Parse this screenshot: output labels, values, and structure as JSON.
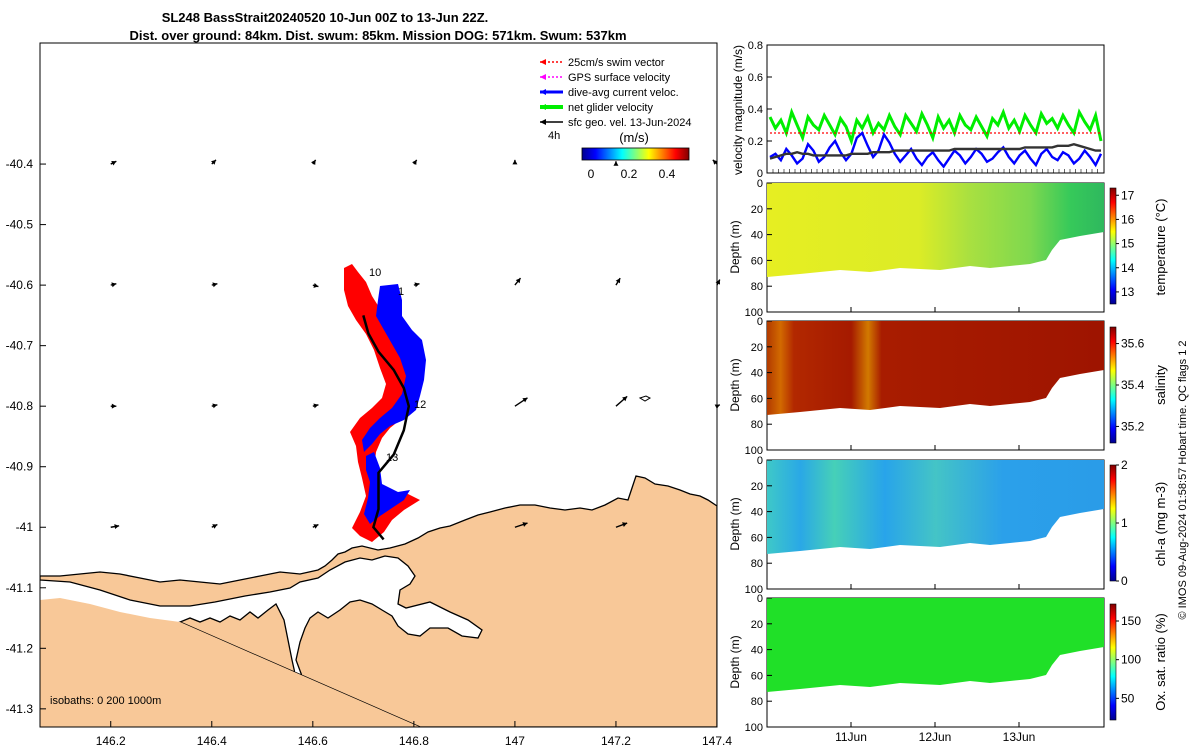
{
  "title": {
    "line1": "SL248 BassStrait20240520 10-Jun 00Z to 13-Jun 22Z.",
    "line2": "Dist. over ground: 84km. Dist. swum: 85km. Mission DOG: 571km. Swum: 537km"
  },
  "map": {
    "x_ticks": [
      "146.2",
      "146.4",
      "146.6",
      "146.8",
      "147",
      "147.2",
      "147.4"
    ],
    "y_ticks": [
      "-40.4",
      "-40.5",
      "-40.6",
      "-40.7",
      "-40.8",
      "-40.9",
      "-41",
      "-41.1",
      "-41.2",
      "-41.3"
    ],
    "xlim": [
      146.06,
      147.4
    ],
    "ylim": [
      -41.33,
      -40.2
    ],
    "isobaths": "isobaths: 0   200  1000m",
    "day_labels": [
      "10",
      "1",
      "12",
      "13"
    ],
    "legend": [
      {
        "label": "25cm/s swim vector",
        "color": "#ff0000"
      },
      {
        "label": "GPS surface velocity",
        "color": "#ff00ff"
      },
      {
        "label": "dive-avg current veloc.",
        "color": "#0000ff"
      },
      {
        "label": "net glider velocity",
        "color": "#00ee00"
      },
      {
        "label": "sfc geo. vel. 13-Jun-2024",
        "color": "#000000"
      }
    ],
    "arrow_scale_label": "4h",
    "colorbar_unit": "(m/s)",
    "colorbar_ticks": [
      "0",
      "0.2",
      "0.4"
    ],
    "land_color": "#f8c898",
    "geo_vectors": [
      {
        "lon": 146.2,
        "lat": -40.4,
        "u": 0.04,
        "v": 0.02
      },
      {
        "lon": 146.4,
        "lat": -40.4,
        "u": 0.03,
        "v": 0.03
      },
      {
        "lon": 146.6,
        "lat": -40.4,
        "u": 0.02,
        "v": 0.03
      },
      {
        "lon": 146.8,
        "lat": -40.4,
        "u": 0.02,
        "v": 0.03
      },
      {
        "lon": 147.0,
        "lat": -40.4,
        "u": 0.0,
        "v": 0.03
      },
      {
        "lon": 147.2,
        "lat": -40.4,
        "u": 0.0,
        "v": 0.02
      },
      {
        "lon": 147.4,
        "lat": -40.4,
        "u": -0.03,
        "v": 0.03
      },
      {
        "lon": 146.2,
        "lat": -40.6,
        "u": 0.04,
        "v": 0.01
      },
      {
        "lon": 146.4,
        "lat": -40.6,
        "u": 0.04,
        "v": 0.01
      },
      {
        "lon": 146.6,
        "lat": -40.6,
        "u": 0.04,
        "v": -0.01
      },
      {
        "lon": 146.8,
        "lat": -40.6,
        "u": 0.04,
        "v": 0.01
      },
      {
        "lon": 147.0,
        "lat": -40.6,
        "u": 0.04,
        "v": 0.05
      },
      {
        "lon": 147.2,
        "lat": -40.6,
        "u": 0.03,
        "v": 0.05
      },
      {
        "lon": 147.4,
        "lat": -40.6,
        "u": 0.02,
        "v": 0.04
      },
      {
        "lon": 146.2,
        "lat": -40.8,
        "u": 0.04,
        "v": 0.0
      },
      {
        "lon": 146.4,
        "lat": -40.8,
        "u": 0.04,
        "v": 0.01
      },
      {
        "lon": 146.6,
        "lat": -40.8,
        "u": 0.04,
        "v": 0.01
      },
      {
        "lon": 147.0,
        "lat": -40.8,
        "u": 0.09,
        "v": 0.06
      },
      {
        "lon": 147.2,
        "lat": -40.8,
        "u": 0.08,
        "v": 0.07
      },
      {
        "lon": 147.4,
        "lat": -40.8,
        "u": 0.02,
        "v": 0.01
      },
      {
        "lon": 146.2,
        "lat": -41.0,
        "u": 0.06,
        "v": 0.01
      },
      {
        "lon": 146.4,
        "lat": -41.0,
        "u": 0.04,
        "v": 0.02
      },
      {
        "lon": 146.6,
        "lat": -41.0,
        "u": 0.04,
        "v": 0.02
      },
      {
        "lon": 147.0,
        "lat": -41.0,
        "u": 0.09,
        "v": 0.03
      },
      {
        "lon": 147.2,
        "lat": -41.0,
        "u": 0.08,
        "v": 0.03
      }
    ],
    "track": [
      {
        "lon": 146.7,
        "lat": -40.65
      },
      {
        "lon": 146.71,
        "lat": -40.68
      },
      {
        "lon": 146.73,
        "lat": -40.71
      },
      {
        "lon": 146.76,
        "lat": -40.74
      },
      {
        "lon": 146.78,
        "lat": -40.77
      },
      {
        "lon": 146.79,
        "lat": -40.8
      },
      {
        "lon": 146.78,
        "lat": -40.84
      },
      {
        "lon": 146.76,
        "lat": -40.88
      },
      {
        "lon": 146.73,
        "lat": -40.91
      },
      {
        "lon": 146.73,
        "lat": -40.94
      },
      {
        "lon": 146.73,
        "lat": -40.97
      },
      {
        "lon": 146.72,
        "lat": -41.0
      },
      {
        "lon": 146.74,
        "lat": -41.02
      }
    ]
  },
  "velocity_panel": {
    "ylabel": "velocity magnitude (m/s)",
    "y_ticks": [
      "0",
      "0.2",
      "0.4",
      "0.6",
      "0.8"
    ],
    "ylim": [
      0,
      0.8
    ],
    "series": [
      {
        "name": "net glider velocity",
        "color": "#00ee00",
        "values": [
          0.35,
          0.28,
          0.33,
          0.25,
          0.38,
          0.3,
          0.22,
          0.35,
          0.3,
          0.27,
          0.36,
          0.3,
          0.24,
          0.34,
          0.29,
          0.2,
          0.33,
          0.28,
          0.35,
          0.25,
          0.31,
          0.27,
          0.36,
          0.29,
          0.24,
          0.36,
          0.31,
          0.26,
          0.37,
          0.3,
          0.22,
          0.35,
          0.28,
          0.33,
          0.25,
          0.36,
          0.3,
          0.27,
          0.35,
          0.29,
          0.23,
          0.34,
          0.3,
          0.38,
          0.28,
          0.33,
          0.26,
          0.36,
          0.3,
          0.25,
          0.37,
          0.31,
          0.34,
          0.28,
          0.36,
          0.3,
          0.25,
          0.38,
          0.32,
          0.27,
          0.36,
          0.2
        ]
      },
      {
        "name": "swim vector",
        "color": "#ff0000",
        "dashed": true,
        "values": [
          0.25,
          0.25,
          0.25,
          0.25,
          0.25,
          0.25,
          0.25,
          0.25,
          0.25,
          0.25,
          0.25,
          0.25,
          0.25,
          0.25,
          0.25,
          0.25,
          0.25,
          0.25,
          0.25,
          0.25,
          0.25,
          0.25,
          0.25,
          0.25,
          0.25,
          0.25,
          0.25,
          0.25,
          0.25,
          0.25,
          0.25,
          0.25,
          0.25,
          0.25,
          0.25,
          0.25,
          0.25,
          0.25,
          0.25,
          0.25,
          0.25,
          0.25,
          0.25,
          0.25,
          0.25,
          0.25,
          0.25,
          0.25,
          0.25,
          0.25,
          0.25,
          0.25,
          0.25,
          0.25,
          0.25,
          0.25,
          0.25,
          0.25,
          0.25,
          0.25,
          0.25,
          0.25
        ]
      },
      {
        "name": "dive-avg current veloc.",
        "color": "#0000ff",
        "values": [
          0.1,
          0.12,
          0.08,
          0.15,
          0.11,
          0.06,
          0.09,
          0.18,
          0.14,
          0.07,
          0.1,
          0.16,
          0.2,
          0.13,
          0.08,
          0.12,
          0.22,
          0.25,
          0.17,
          0.1,
          0.14,
          0.24,
          0.19,
          0.12,
          0.07,
          0.11,
          0.15,
          0.09,
          0.05,
          0.1,
          0.13,
          0.08,
          0.04,
          0.09,
          0.14,
          0.11,
          0.06,
          0.1,
          0.15,
          0.12,
          0.07,
          0.09,
          0.13,
          0.16,
          0.1,
          0.06,
          0.11,
          0.14,
          0.09,
          0.05,
          0.12,
          0.15,
          0.1,
          0.08,
          0.13,
          0.11,
          0.06,
          0.09,
          0.14,
          0.1,
          0.05,
          0.12
        ]
      },
      {
        "name": "sfc geo. vel.",
        "color": "#333333",
        "values": [
          0.09,
          0.1,
          0.11,
          0.12,
          0.12,
          0.13,
          0.12,
          0.12,
          0.11,
          0.11,
          0.11,
          0.11,
          0.11,
          0.11,
          0.11,
          0.12,
          0.12,
          0.12,
          0.12,
          0.13,
          0.13,
          0.13,
          0.13,
          0.14,
          0.14,
          0.14,
          0.14,
          0.14,
          0.14,
          0.14,
          0.14,
          0.14,
          0.14,
          0.14,
          0.15,
          0.15,
          0.15,
          0.15,
          0.15,
          0.15,
          0.15,
          0.15,
          0.15,
          0.15,
          0.15,
          0.15,
          0.15,
          0.16,
          0.16,
          0.16,
          0.16,
          0.16,
          0.16,
          0.17,
          0.17,
          0.17,
          0.18,
          0.17,
          0.16,
          0.15,
          0.14,
          0.14
        ]
      }
    ]
  },
  "section_panels": [
    {
      "name": "temperature",
      "cb_label": "temperature (°C)",
      "cb_ticks": [
        "13",
        "14",
        "15",
        "16",
        "17"
      ],
      "cb_range": [
        12.5,
        17.3
      ]
    },
    {
      "name": "salinity",
      "cb_label": "salinity",
      "cb_ticks": [
        "35.2",
        "35.4",
        "35.6"
      ],
      "cb_range": [
        35.12,
        35.68
      ]
    },
    {
      "name": "chl-a",
      "cb_label": "chl-a (mg m-3)",
      "cb_ticks": [
        "0",
        "1",
        "2"
      ],
      "cb_range": [
        0,
        2
      ]
    },
    {
      "name": "oxygen",
      "cb_label": "Ox. sat. ratio (%)",
      "cb_ticks": [
        "50",
        "100",
        "150"
      ],
      "cb_range": [
        22,
        172
      ]
    }
  ],
  "section_axes": {
    "ylabel": "Depth (m)",
    "y_ticks": [
      "0",
      "20",
      "40",
      "60",
      "80",
      "100"
    ],
    "ylim": [
      0,
      100
    ],
    "x_ticks": [
      "11Jun",
      "12Jun",
      "13Jun"
    ]
  },
  "credit": "© IMOS 09-Aug-2024 01:58:57 Hobart time. QC flags 1  2"
}
